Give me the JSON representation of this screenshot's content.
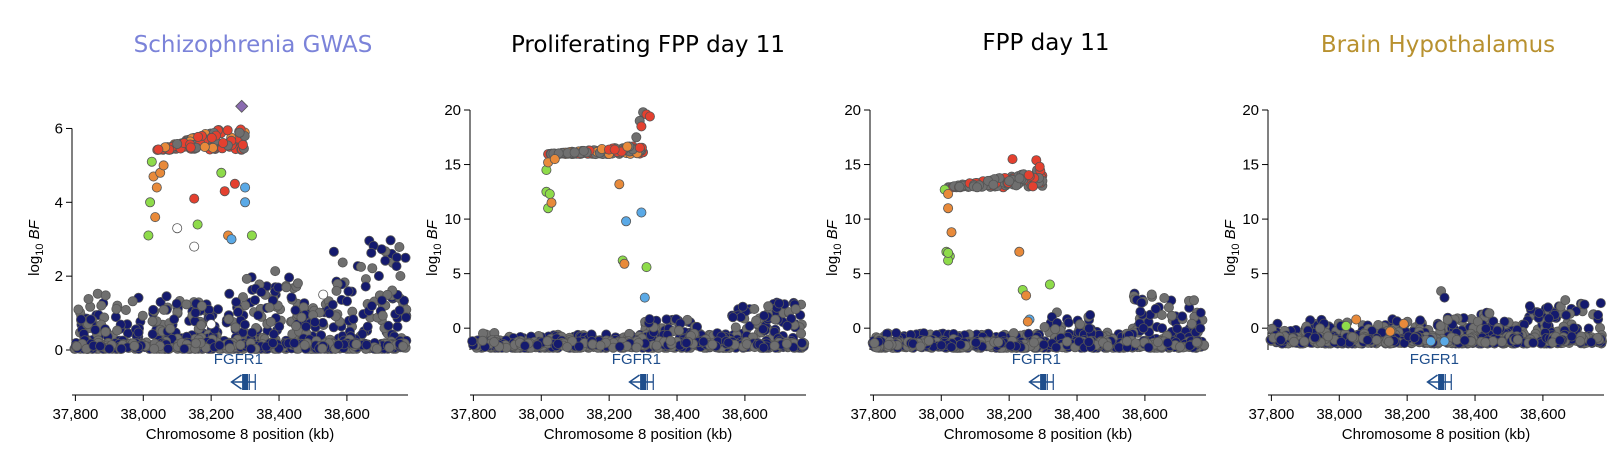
{
  "colors": {
    "navy": "#141a6e",
    "gray": "#6f6f6f",
    "red": "#e4402f",
    "orange": "#e88a3a",
    "green": "#8edb4a",
    "lightblue": "#5aa9e6",
    "white": "#ffffff",
    "lead": "#8a6bb0",
    "gene": "#1f4e8c",
    "title_purple": "#7b83d9",
    "title_gold": "#b8912f",
    "title_black": "#000000"
  },
  "chart_data": [
    {
      "type": "scatter",
      "title": "Schizophrenia GWAS",
      "title_color": "#7b83d9",
      "xlabel": "Chromosome 8 position (kb)",
      "ylabel_main": "log",
      "ylabel_sub": "10",
      "ylabel_var": "BF",
      "xlim": [
        37790,
        38780
      ],
      "ylim": [
        0,
        6.5
      ],
      "xticks": [
        37800,
        38000,
        38200,
        38400,
        38600
      ],
      "xtick_labels": [
        "37,800",
        "38,000",
        "38,200",
        "38,400",
        "38,600"
      ],
      "yticks": [
        0,
        2,
        4,
        6
      ],
      "ytick_labels": [
        "0",
        "2",
        "4",
        "6"
      ],
      "gene": {
        "name": "FGFR1",
        "start": 38260,
        "end": 38330,
        "exon": 38300,
        "strand": "-"
      },
      "seed": 11,
      "background": {
        "min": 0,
        "max": 1.3,
        "max_far": 2.8,
        "noise": 0.55
      },
      "peak": {
        "from": 38040,
        "to": 38300,
        "min": 5.0,
        "max": 6.2,
        "colors": [
          "red",
          "red",
          "red",
          "orange",
          "gray"
        ]
      },
      "highlight": [
        {
          "x": 38290,
          "y": 6.6,
          "c": "lead"
        },
        {
          "x": 38025,
          "y": 5.1,
          "c": "green"
        },
        {
          "x": 38030,
          "y": 4.7,
          "c": "orange"
        },
        {
          "x": 38020,
          "y": 4.0,
          "c": "green"
        },
        {
          "x": 38035,
          "y": 3.6,
          "c": "orange"
        },
        {
          "x": 38040,
          "y": 4.4,
          "c": "orange"
        },
        {
          "x": 38050,
          "y": 4.8,
          "c": "orange"
        },
        {
          "x": 38015,
          "y": 3.1,
          "c": "green"
        },
        {
          "x": 38060,
          "y": 5.0,
          "c": "orange"
        },
        {
          "x": 38100,
          "y": 3.3,
          "c": "white"
        },
        {
          "x": 38150,
          "y": 2.8,
          "c": "white"
        },
        {
          "x": 38160,
          "y": 3.4,
          "c": "green"
        },
        {
          "x": 38250,
          "y": 3.1,
          "c": "orange"
        },
        {
          "x": 38260,
          "y": 3.0,
          "c": "lightblue"
        },
        {
          "x": 38300,
          "y": 4.0,
          "c": "lightblue"
        },
        {
          "x": 38300,
          "y": 4.4,
          "c": "lightblue"
        },
        {
          "x": 38320,
          "y": 3.1,
          "c": "green"
        },
        {
          "x": 38230,
          "y": 4.8,
          "c": "green"
        },
        {
          "x": 38240,
          "y": 4.3,
          "c": "red"
        },
        {
          "x": 38270,
          "y": 4.5,
          "c": "red"
        },
        {
          "x": 38150,
          "y": 4.1,
          "c": "red"
        },
        {
          "x": 38530,
          "y": 1.5,
          "c": "white"
        },
        {
          "x": 38200,
          "y": 0.7,
          "c": "white"
        }
      ]
    },
    {
      "type": "scatter",
      "title": "Proliferating FPP day 11",
      "title_color": "#000000",
      "xlabel": "Chromosome 8 position (kb)",
      "ylabel_main": "log",
      "ylabel_sub": "10",
      "ylabel_var": "BF",
      "xlim": [
        37790,
        38780
      ],
      "ylim": [
        -2,
        20
      ],
      "xticks": [
        37800,
        38000,
        38200,
        38400,
        38600
      ],
      "xtick_labels": [
        "37,800",
        "38,000",
        "38,200",
        "38,400",
        "38,600"
      ],
      "yticks": [
        0,
        5,
        10,
        15,
        20
      ],
      "ytick_labels": [
        "0",
        "5",
        "10",
        "15",
        "20"
      ],
      "gene": {
        "name": "FGFR1",
        "start": 38260,
        "end": 38330,
        "exon": 38300,
        "strand": "-"
      },
      "seed": 23,
      "background": {
        "min": -1.8,
        "max": -0.6,
        "max_far": 2.5,
        "noise": 0.4
      },
      "peak": {
        "from": 38020,
        "to": 38300,
        "min": 15.5,
        "max": 16.8,
        "colors": [
          "gray",
          "gray",
          "red",
          "orange"
        ]
      },
      "highlight": [
        {
          "x": 38280,
          "y": 17.5,
          "c": "gray"
        },
        {
          "x": 38290,
          "y": 19.0,
          "c": "gray"
        },
        {
          "x": 38300,
          "y": 19.8,
          "c": "gray"
        },
        {
          "x": 38310,
          "y": 19.6,
          "c": "red"
        },
        {
          "x": 38320,
          "y": 19.4,
          "c": "red"
        },
        {
          "x": 38295,
          "y": 18.5,
          "c": "red"
        },
        {
          "x": 38015,
          "y": 14.5,
          "c": "green"
        },
        {
          "x": 38020,
          "y": 15.2,
          "c": "orange"
        },
        {
          "x": 38015,
          "y": 12.5,
          "c": "green"
        },
        {
          "x": 38025,
          "y": 12.3,
          "c": "green"
        },
        {
          "x": 38020,
          "y": 11.0,
          "c": "green"
        },
        {
          "x": 38030,
          "y": 11.5,
          "c": "orange"
        },
        {
          "x": 38230,
          "y": 13.2,
          "c": "orange"
        },
        {
          "x": 38250,
          "y": 9.8,
          "c": "lightblue"
        },
        {
          "x": 38295,
          "y": 10.6,
          "c": "lightblue"
        },
        {
          "x": 38240,
          "y": 6.2,
          "c": "green"
        },
        {
          "x": 38245,
          "y": 5.9,
          "c": "orange"
        },
        {
          "x": 38310,
          "y": 5.6,
          "c": "green"
        },
        {
          "x": 38305,
          "y": 2.8,
          "c": "lightblue"
        },
        {
          "x": 38040,
          "y": 15.5,
          "c": "orange"
        }
      ]
    },
    {
      "type": "scatter",
      "title": "FPP day 11",
      "title_color": "#000000",
      "xlabel": "Chromosome 8 position (kb)",
      "ylabel_main": "log",
      "ylabel_sub": "10",
      "ylabel_var": "BF",
      "xlim": [
        37790,
        38780
      ],
      "ylim": [
        -2,
        20
      ],
      "xticks": [
        37800,
        38000,
        38200,
        38400,
        38600
      ],
      "xtick_labels": [
        "37,800",
        "38,000",
        "38,200",
        "38,400",
        "38,600"
      ],
      "yticks": [
        0,
        5,
        10,
        15,
        20
      ],
      "ytick_labels": [
        "0",
        "5",
        "10",
        "15",
        "20"
      ],
      "gene": {
        "name": "FGFR1",
        "start": 38260,
        "end": 38330,
        "exon": 38300,
        "strand": "-"
      },
      "seed": 37,
      "background": {
        "min": -1.8,
        "max": -0.5,
        "max_far": 3.2,
        "noise": 0.4
      },
      "peak": {
        "from": 38020,
        "to": 38300,
        "min": 12.0,
        "max": 14.6,
        "colors": [
          "gray",
          "gray",
          "red",
          "gray"
        ]
      },
      "highlight": [
        {
          "x": 38010,
          "y": 12.7,
          "c": "green"
        },
        {
          "x": 38020,
          "y": 12.3,
          "c": "orange"
        },
        {
          "x": 38020,
          "y": 11.0,
          "c": "orange"
        },
        {
          "x": 38030,
          "y": 8.8,
          "c": "orange"
        },
        {
          "x": 38015,
          "y": 7.0,
          "c": "green"
        },
        {
          "x": 38025,
          "y": 6.6,
          "c": "green"
        },
        {
          "x": 38020,
          "y": 6.2,
          "c": "green"
        },
        {
          "x": 38020,
          "y": 6.9,
          "c": "green"
        },
        {
          "x": 38230,
          "y": 7.0,
          "c": "orange"
        },
        {
          "x": 38240,
          "y": 3.5,
          "c": "green"
        },
        {
          "x": 38250,
          "y": 3.0,
          "c": "orange"
        },
        {
          "x": 38320,
          "y": 4.0,
          "c": "green"
        },
        {
          "x": 38260,
          "y": 0.8,
          "c": "lightblue"
        },
        {
          "x": 38255,
          "y": 0.6,
          "c": "orange"
        },
        {
          "x": 38210,
          "y": 15.5,
          "c": "red"
        },
        {
          "x": 38280,
          "y": 15.4,
          "c": "red"
        },
        {
          "x": 38290,
          "y": 14.8,
          "c": "red"
        },
        {
          "x": 38270,
          "y": 13.0,
          "c": "red"
        }
      ]
    },
    {
      "type": "scatter",
      "title": "Brain Hypothalamus",
      "title_color": "#b8912f",
      "xlabel": "Chromosome 8 position (kb)",
      "ylabel_main": "log",
      "ylabel_sub": "10",
      "ylabel_var": "BF",
      "xlim": [
        37790,
        38780
      ],
      "ylim": [
        -2,
        20
      ],
      "xticks": [
        37800,
        38000,
        38200,
        38400,
        38600
      ],
      "xtick_labels": [
        "37,800",
        "38,000",
        "38,200",
        "38,400",
        "38,600"
      ],
      "yticks": [
        0,
        5,
        10,
        15,
        20
      ],
      "ytick_labels": [
        "0",
        "5",
        "10",
        "15",
        "20"
      ],
      "gene": {
        "name": "FGFR1",
        "start": 38260,
        "end": 38330,
        "exon": 38300,
        "strand": "-"
      },
      "seed": 53,
      "background": {
        "min": -1.4,
        "max": 0.6,
        "max_far": 2.6,
        "noise": 0.5
      },
      "peak": null,
      "highlight": [
        {
          "x": 38020,
          "y": 0.2,
          "c": "green"
        },
        {
          "x": 38050,
          "y": 0.8,
          "c": "orange"
        },
        {
          "x": 38150,
          "y": -0.3,
          "c": "orange"
        },
        {
          "x": 38190,
          "y": 0.4,
          "c": "orange"
        },
        {
          "x": 38270,
          "y": -1.2,
          "c": "lightblue"
        },
        {
          "x": 38310,
          "y": -1.2,
          "c": "lightblue"
        },
        {
          "x": 38300,
          "y": 3.4,
          "c": "gray"
        },
        {
          "x": 38310,
          "y": 2.8,
          "c": "navy"
        }
      ]
    }
  ]
}
